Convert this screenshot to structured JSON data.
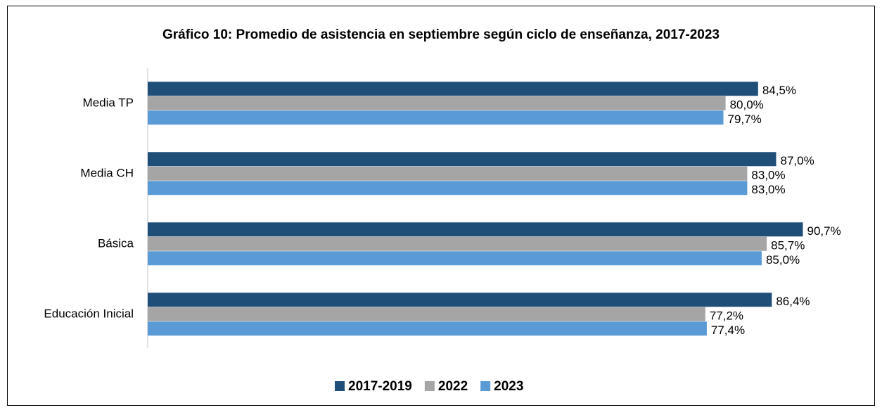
{
  "chart_data": {
    "type": "hbar",
    "title": "Gráfico 10: Promedio de asistencia en septiembre según ciclo de enseñanza, 2017-2023",
    "categories": [
      "Media TP",
      "Media CH",
      "Básica",
      "Educación Inicial"
    ],
    "series": [
      {
        "name": "2017-2019",
        "color": "#1f4e79",
        "values": [
          84.5,
          87.0,
          90.7,
          86.4
        ],
        "value_labels": [
          "84,5%",
          "87,0%",
          "90,7%",
          "86,4%"
        ]
      },
      {
        "name": "2022",
        "color": "#a5a5a5",
        "values": [
          80.0,
          83.0,
          85.7,
          77.2
        ],
        "value_labels": [
          "80,0%",
          "83,0%",
          "85,7%",
          "77,2%"
        ]
      },
      {
        "name": "2023",
        "color": "#5b9bd5",
        "values": [
          79.7,
          83.0,
          85.0,
          77.4
        ],
        "value_labels": [
          "79,7%",
          "83,0%",
          "85,0%",
          "77,4%"
        ]
      }
    ],
    "xlim": [
      0,
      100
    ],
    "legend": "bottom"
  }
}
